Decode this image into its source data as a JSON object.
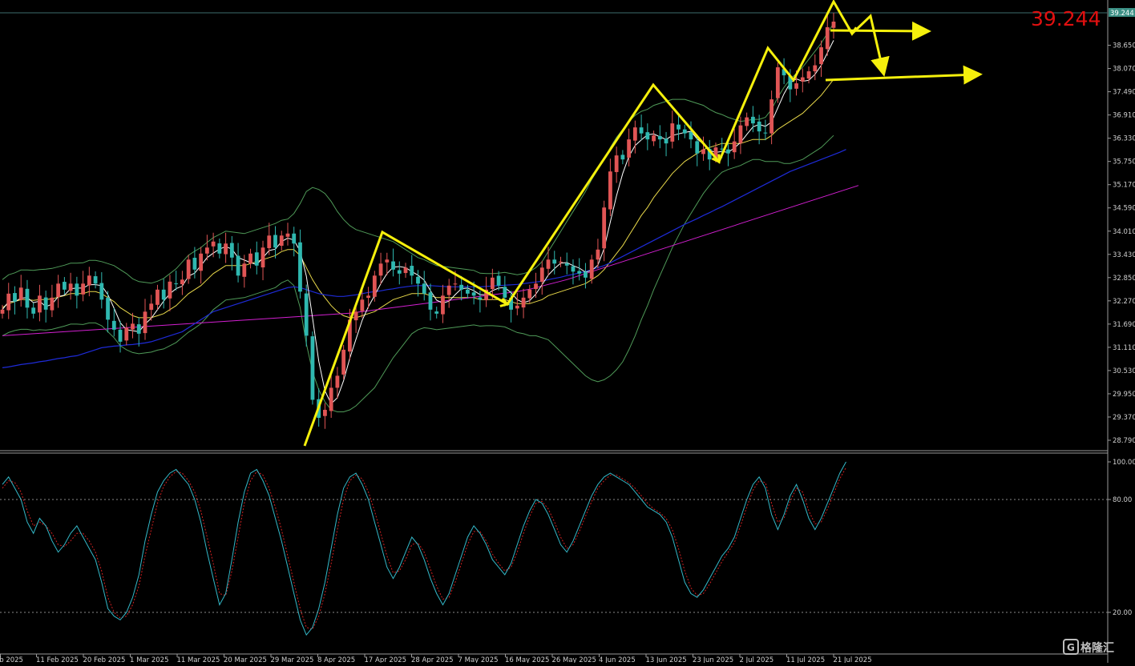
{
  "chart_data": {
    "type": "candlestick",
    "current_price_label": "39.244",
    "price_tag": "39.244",
    "price_axis_ticks": [
      "38.650",
      "38.070",
      "37.490",
      "36.910",
      "36.330",
      "35.750",
      "35.170",
      "34.590",
      "34.010",
      "33.430",
      "32.850",
      "32.270",
      "31.690",
      "31.110",
      "30.530",
      "29.950",
      "29.370",
      "28.790"
    ],
    "price_axis_values": [
      38.65,
      38.07,
      37.49,
      36.91,
      36.33,
      35.75,
      35.17,
      34.59,
      34.01,
      33.43,
      32.85,
      32.27,
      31.69,
      31.11,
      30.53,
      29.95,
      29.37,
      28.79
    ],
    "ylim": [
      28.53,
      39.78
    ],
    "oscillator_ticks": [
      "100.00",
      "80.00",
      "20.00"
    ],
    "oscillator_levels": [
      100,
      80,
      20
    ],
    "oscillator_ylim": [
      0,
      100
    ],
    "date_labels": [
      "eb 2025",
      "11 Feb 2025",
      "20 Feb 2025",
      "1 Mar 2025",
      "11 Mar 2025",
      "20 Mar 2025",
      "29 Mar 2025",
      "8 Apr 2025",
      "17 Apr 2025",
      "28 Apr 2025",
      "7 May 2025",
      "16 May 2025",
      "26 May 2025",
      "4 Jun 2025",
      "13 Jun 2025",
      "23 Jun 2025",
      "2 Jul 2025",
      "11 Jul 2025",
      "21 Jul 2025"
    ],
    "closes": [
      32.05,
      32.45,
      32.25,
      32.6,
      32.1,
      31.95,
      32.4,
      32.05,
      32.35,
      32.7,
      32.55,
      32.7,
      32.4,
      32.7,
      32.9,
      32.7,
      32.3,
      31.8,
      31.55,
      31.25,
      31.6,
      31.7,
      31.45,
      32.0,
      32.2,
      32.55,
      32.3,
      32.75,
      32.7,
      32.8,
      33.3,
      33.05,
      33.45,
      33.6,
      33.75,
      33.45,
      33.7,
      33.35,
      32.9,
      33.2,
      33.45,
      33.15,
      33.6,
      33.9,
      33.6,
      33.9,
      33.95,
      33.7,
      32.5,
      31.4,
      29.8,
      29.35,
      29.55,
      30.1,
      30.4,
      31.05,
      31.8,
      32.0,
      32.3,
      32.4,
      32.9,
      33.2,
      33.3,
      33.05,
      32.95,
      33.1,
      32.9,
      32.7,
      32.45,
      32.05,
      31.95,
      32.4,
      32.65,
      32.7,
      32.55,
      32.45,
      32.4,
      32.3,
      32.55,
      32.85,
      32.65,
      32.35,
      32.05,
      32.15,
      32.35,
      32.55,
      32.7,
      33.1,
      33.3,
      33.2,
      33.25,
      33.15,
      33.0,
      32.95,
      32.85,
      33.3,
      33.55,
      34.6,
      35.5,
      35.9,
      35.8,
      36.3,
      36.6,
      36.45,
      36.3,
      36.4,
      36.3,
      36.2,
      36.7,
      36.55,
      36.45,
      36.3,
      35.95,
      36.05,
      35.8,
      36.1,
      36.05,
      35.95,
      36.25,
      36.65,
      36.85,
      36.7,
      36.5,
      36.45,
      37.3,
      38.1,
      37.9,
      37.55,
      37.7,
      37.85,
      38.0,
      38.15,
      38.6,
      39.1,
      39.24
    ],
    "mid_band": [
      32.1,
      32.2,
      32.25,
      32.3,
      32.3,
      32.28,
      32.3,
      32.3,
      32.32,
      32.36,
      32.4,
      32.45,
      32.45,
      32.45,
      32.5,
      32.5,
      32.45,
      32.35,
      32.25,
      32.1,
      32.0,
      31.9,
      31.85,
      31.85,
      31.85,
      31.9,
      31.95,
      32.05,
      32.15,
      32.3,
      32.45,
      32.55,
      32.65,
      32.8,
      32.95,
      33.05,
      33.15,
      33.15,
      33.15,
      33.15,
      33.2,
      33.25,
      33.3,
      33.35,
      33.4,
      33.5,
      33.55,
      33.55,
      33.4,
      33.1,
      32.8,
      32.55,
      32.35,
      32.15,
      32.0,
      31.9,
      31.85,
      31.85,
      31.9,
      31.95,
      32.0,
      32.1,
      32.2,
      32.3,
      32.35,
      32.4,
      32.45,
      32.45,
      32.45,
      32.4,
      32.35,
      32.35,
      32.35,
      32.35,
      32.35,
      32.35,
      32.35,
      32.3,
      32.3,
      32.3,
      32.3,
      32.3,
      32.25,
      32.2,
      32.2,
      32.2,
      32.25,
      32.3,
      32.4,
      32.45,
      32.5,
      32.55,
      32.6,
      32.65,
      32.7,
      32.8,
      32.9,
      33.05,
      33.25,
      33.45,
      33.65,
      33.9,
      34.15,
      34.4,
      34.6,
      34.85,
      35.05,
      35.25,
      35.45,
      35.6,
      35.75,
      35.85,
      35.95,
      36.05,
      36.1,
      36.15,
      36.2,
      36.2,
      36.2,
      36.2,
      36.25,
      36.3,
      36.3,
      36.3,
      36.4,
      36.55,
      36.65,
      36.75,
      36.85,
      36.95,
      37.1,
      37.25,
      37.4,
      37.6,
      37.8
    ],
    "band_width": [
      0.7,
      0.72,
      0.72,
      0.74,
      0.74,
      0.75,
      0.75,
      0.76,
      0.76,
      0.76,
      0.76,
      0.76,
      0.76,
      0.77,
      0.78,
      0.78,
      0.8,
      0.85,
      0.9,
      0.95,
      0.95,
      0.92,
      0.9,
      0.88,
      0.86,
      0.86,
      0.88,
      0.9,
      0.92,
      0.94,
      0.96,
      0.96,
      0.95,
      0.93,
      0.9,
      0.88,
      0.86,
      0.84,
      0.82,
      0.8,
      0.8,
      0.8,
      0.8,
      0.8,
      0.8,
      0.78,
      0.76,
      0.9,
      1.3,
      1.9,
      2.3,
      2.5,
      2.6,
      2.6,
      2.5,
      2.4,
      2.3,
      2.2,
      2.1,
      2.0,
      1.9,
      1.75,
      1.6,
      1.45,
      1.3,
      1.15,
      1.0,
      0.9,
      0.85,
      0.82,
      0.8,
      0.78,
      0.76,
      0.74,
      0.72,
      0.7,
      0.68,
      0.66,
      0.65,
      0.65,
      0.66,
      0.68,
      0.7,
      0.72,
      0.75,
      0.8,
      0.85,
      0.95,
      1.1,
      1.3,
      1.5,
      1.7,
      1.9,
      2.1,
      2.3,
      2.5,
      2.65,
      2.75,
      2.85,
      2.9,
      2.9,
      2.85,
      2.75,
      2.6,
      2.45,
      2.3,
      2.15,
      2.0,
      1.85,
      1.7,
      1.55,
      1.4,
      1.25,
      1.1,
      0.95,
      0.82,
      0.72,
      0.65,
      0.6,
      0.55,
      0.52,
      0.5,
      0.5,
      0.55,
      0.65,
      0.8,
      0.95,
      1.05,
      1.1,
      1.15,
      1.2,
      1.25,
      1.3,
      1.35,
      1.4,
      1.45,
      1.45
    ],
    "ma_blue": [
      30.6,
      30.62,
      30.65,
      30.68,
      30.7,
      30.72,
      30.75,
      30.77,
      30.8,
      30.83,
      30.85,
      30.88,
      30.9,
      30.95,
      31.0,
      31.05,
      31.1,
      31.12,
      31.14,
      31.15,
      31.17,
      31.18,
      31.2,
      31.22,
      31.25,
      31.3,
      31.35,
      31.4,
      31.45,
      31.5,
      31.6,
      31.7,
      31.8,
      31.9,
      32.0,
      32.05,
      32.1,
      32.15,
      32.2,
      32.25,
      32.3,
      32.35,
      32.4,
      32.45,
      32.5,
      32.55,
      32.6,
      32.62,
      32.6,
      32.55,
      32.5,
      32.45,
      32.42,
      32.4,
      32.38,
      32.38,
      32.4,
      32.42,
      32.45,
      32.48,
      32.5,
      32.52,
      32.55,
      32.57,
      32.6,
      32.62,
      32.64,
      32.65,
      32.65,
      32.65,
      32.64,
      32.63,
      32.62,
      32.62,
      32.62,
      32.62,
      32.62,
      32.62,
      32.63,
      32.64,
      32.65,
      32.66,
      32.67,
      32.68,
      32.7,
      32.72,
      32.74,
      32.76,
      32.8,
      32.83,
      32.86,
      32.9,
      32.93,
      32.97,
      33.0,
      33.05,
      33.1,
      33.15,
      33.22,
      33.3,
      33.38,
      33.46,
      33.54,
      33.62,
      33.7,
      33.78,
      33.86,
      33.94,
      34.02,
      34.1,
      34.18,
      34.25,
      34.32,
      34.4,
      34.47,
      34.55,
      34.62,
      34.7,
      34.78,
      34.86,
      34.94,
      35.02,
      35.1,
      35.18,
      35.26,
      35.34,
      35.42,
      35.5,
      35.56,
      35.62,
      35.68,
      35.74,
      35.8,
      35.86,
      35.92,
      35.98,
      36.05
    ],
    "ma_magenta": [
      31.4,
      31.41,
      31.42,
      31.43,
      31.44,
      31.45,
      31.46,
      31.47,
      31.48,
      31.49,
      31.5,
      31.51,
      31.52,
      31.53,
      31.54,
      31.55,
      31.56,
      31.57,
      31.58,
      31.59,
      31.6,
      31.61,
      31.62,
      31.63,
      31.64,
      31.65,
      31.66,
      31.67,
      31.68,
      31.69,
      31.7,
      31.71,
      31.72,
      31.73,
      31.74,
      31.75,
      31.76,
      31.77,
      31.78,
      31.79,
      31.8,
      31.81,
      31.82,
      31.83,
      31.84,
      31.85,
      31.86,
      31.87,
      31.88,
      31.89,
      31.9,
      31.91,
      31.92,
      31.93,
      31.94,
      31.95,
      31.96,
      31.98,
      32.0,
      32.02,
      32.04,
      32.06,
      32.08,
      32.1,
      32.12,
      32.14,
      32.16,
      32.18,
      32.2,
      32.22,
      32.24,
      32.26,
      32.28,
      32.3,
      32.32,
      32.34,
      32.36,
      32.38,
      32.4,
      32.42,
      32.44,
      32.46,
      32.48,
      32.5,
      32.53,
      32.56,
      32.6,
      32.64,
      32.68,
      32.72,
      32.76,
      32.8,
      32.85,
      32.9,
      32.95,
      33.0,
      33.05,
      33.1,
      33.15,
      33.2,
      33.25,
      33.3,
      33.35,
      33.4,
      33.45,
      33.5,
      33.55,
      33.6,
      33.65,
      33.7,
      33.75,
      33.8,
      33.85,
      33.9,
      33.95,
      34.0,
      34.05,
      34.1,
      34.15,
      34.2,
      34.25,
      34.3,
      34.35,
      34.4,
      34.45,
      34.5,
      34.55,
      34.6,
      34.65,
      34.7,
      34.75,
      34.8,
      34.85,
      34.9,
      34.95,
      35.0,
      35.05,
      35.1,
      35.15
    ],
    "stoch_main": [
      88,
      92,
      86,
      80,
      68,
      62,
      70,
      66,
      58,
      52,
      56,
      62,
      66,
      60,
      54,
      48,
      36,
      22,
      18,
      16,
      20,
      28,
      40,
      58,
      72,
      84,
      90,
      94,
      96,
      92,
      88,
      80,
      68,
      52,
      38,
      24,
      30,
      48,
      68,
      84,
      94,
      96,
      90,
      82,
      70,
      58,
      44,
      30,
      16,
      8,
      12,
      22,
      36,
      54,
      72,
      86,
      92,
      94,
      88,
      80,
      68,
      56,
      44,
      38,
      44,
      52,
      60,
      56,
      48,
      38,
      30,
      24,
      30,
      40,
      50,
      60,
      66,
      62,
      56,
      48,
      44,
      40,
      46,
      56,
      66,
      74,
      80,
      78,
      72,
      64,
      56,
      52,
      58,
      66,
      74,
      82,
      88,
      92,
      94,
      92,
      90,
      88,
      84,
      80,
      76,
      74,
      72,
      68,
      60,
      48,
      36,
      30,
      28,
      32,
      38,
      44,
      50,
      54,
      60,
      70,
      80,
      88,
      92,
      86,
      72,
      64,
      72,
      82,
      88,
      80,
      70,
      64,
      70,
      78,
      86,
      94,
      100
    ],
    "stoch_signal": [
      86,
      90,
      89,
      84,
      74,
      66,
      68,
      66,
      62,
      56,
      55,
      58,
      62,
      62,
      58,
      52,
      42,
      28,
      20,
      17,
      18,
      24,
      34,
      50,
      64,
      78,
      87,
      92,
      95,
      94,
      90,
      84,
      74,
      60,
      46,
      30,
      29,
      42,
      60,
      78,
      90,
      95,
      93,
      86,
      76,
      64,
      50,
      36,
      22,
      12,
      11,
      18,
      30,
      46,
      64,
      80,
      90,
      93,
      91,
      84,
      74,
      62,
      50,
      41,
      42,
      48,
      56,
      57,
      52,
      43,
      34,
      27,
      28,
      36,
      46,
      56,
      63,
      63,
      58,
      51,
      46,
      42,
      44,
      52,
      62,
      71,
      78,
      79,
      75,
      68,
      60,
      54,
      56,
      63,
      71,
      79,
      86,
      90,
      93,
      93,
      91,
      89,
      86,
      82,
      78,
      75,
      73,
      70,
      64,
      54,
      42,
      33,
      29,
      30,
      35,
      41,
      47,
      52,
      57,
      66,
      76,
      85,
      90,
      89,
      78,
      68,
      70,
      79,
      86,
      84,
      74,
      67,
      68,
      75,
      83,
      91,
      97
    ],
    "annotations": "yellow zigzag wave path with projection arrows"
  },
  "colors": {
    "background": "#000000",
    "bull_candle": "#e05555",
    "bear_candle": "#2fb8b0",
    "mid_band": "#e8d84a",
    "bands": "#4f9a58",
    "fast_ma": "#ffffff",
    "ma_blue": "#1e2bd8",
    "ma_magenta": "#d21fd0",
    "annotation": "#f5f00c",
    "stoch_main": "#33b8c8",
    "stoch_signal": "#d02020",
    "axis_text": "#d0d0d0",
    "price_label": "#e01010"
  },
  "watermark": {
    "symbol": "G",
    "text": "格隆汇"
  }
}
